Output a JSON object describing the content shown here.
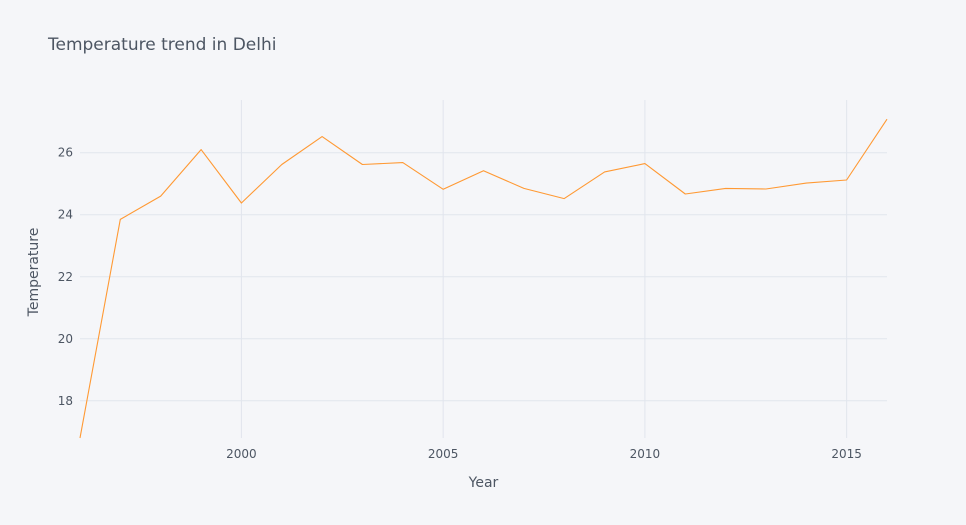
{
  "chart_data": {
    "type": "line",
    "title": "Temperature trend in Delhi",
    "xlabel": "Year",
    "ylabel": "Temperature",
    "xlim": [
      1996,
      2016
    ],
    "ylim": [
      16.8,
      27.7
    ],
    "xticks": [
      2000,
      2005,
      2010,
      2015
    ],
    "yticks": [
      18,
      20,
      22,
      24,
      26
    ],
    "grid": true,
    "legend": "none",
    "series": [
      {
        "color": "#ff9933",
        "x": [
          1996,
          1997,
          1998,
          1999,
          2000,
          2001,
          2002,
          2003,
          2004,
          2005,
          2006,
          2007,
          2008,
          2009,
          2010,
          2011,
          2012,
          2013,
          2014,
          2015,
          2016
        ],
        "y": [
          16.8,
          23.85,
          24.6,
          26.1,
          24.38,
          25.62,
          26.52,
          25.62,
          25.68,
          24.82,
          25.42,
          24.85,
          24.52,
          25.38,
          25.65,
          24.67,
          24.85,
          24.83,
          25.02,
          25.12,
          27.08
        ]
      }
    ]
  }
}
